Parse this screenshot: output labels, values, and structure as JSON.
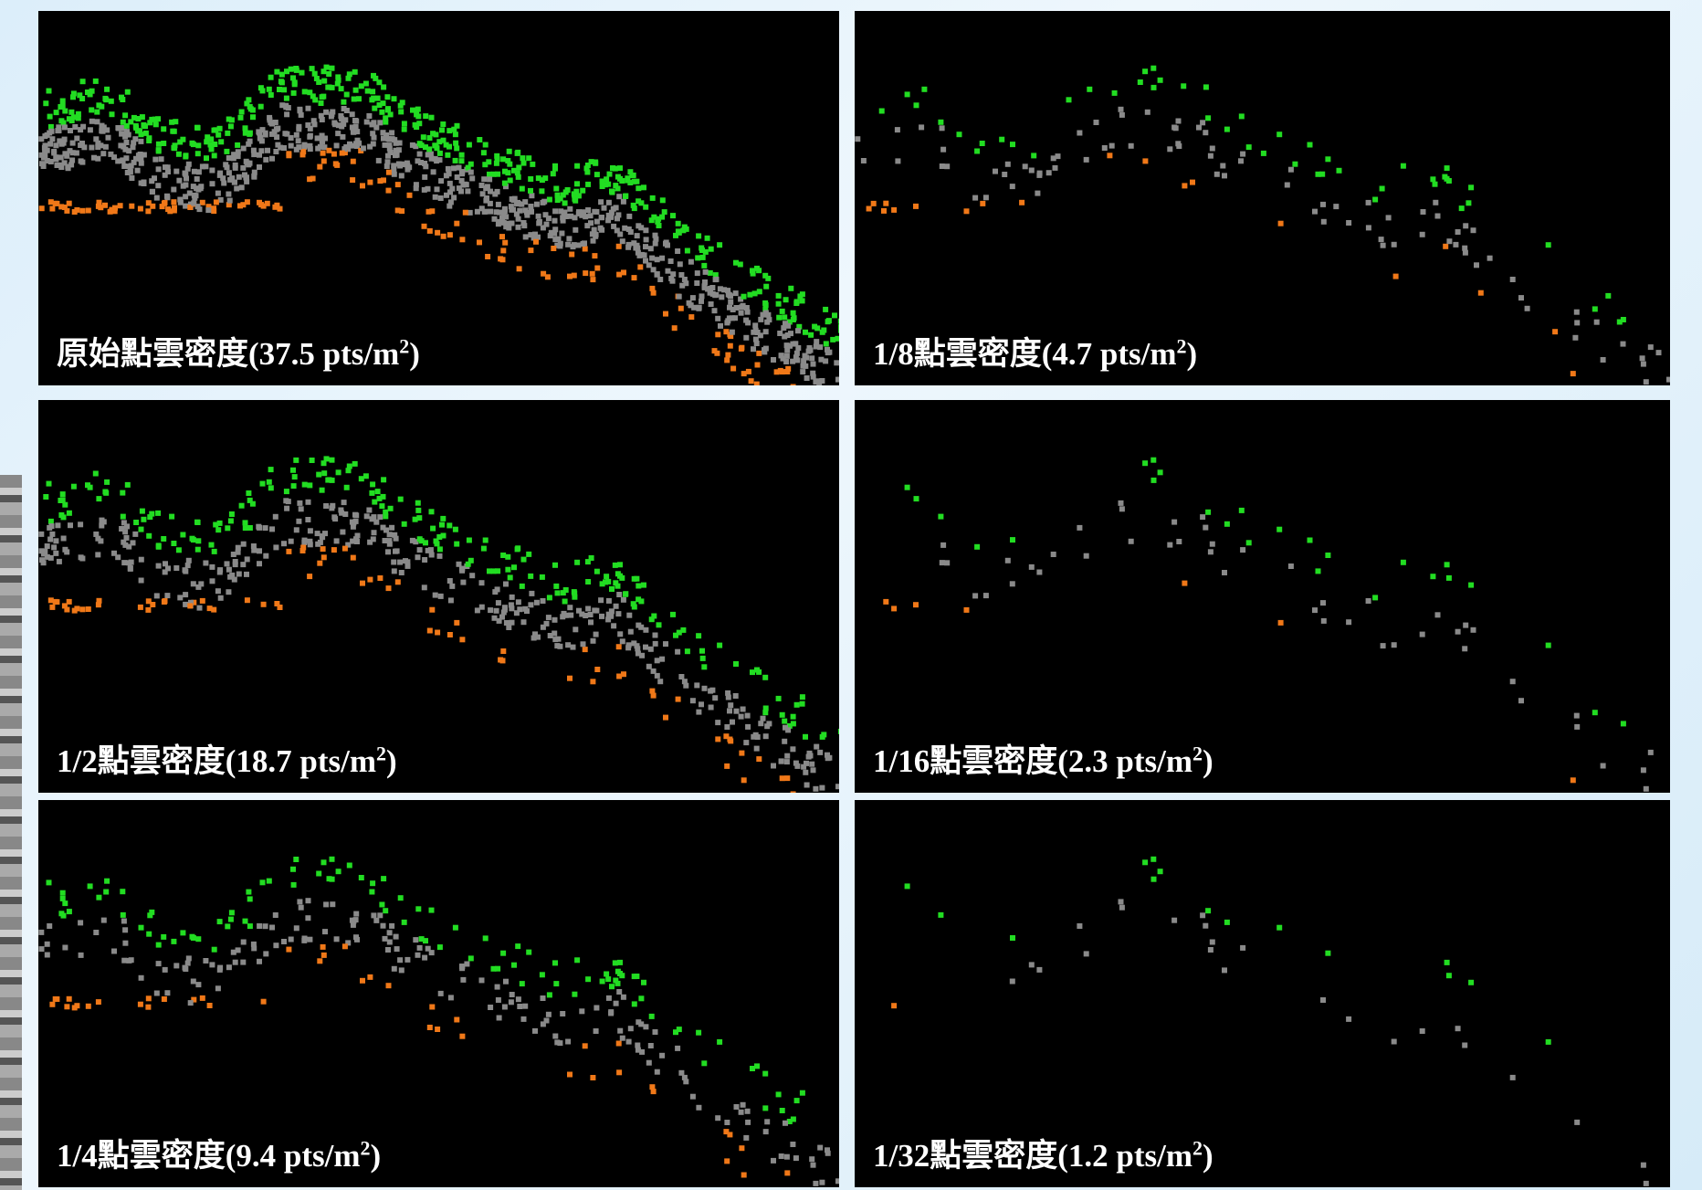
{
  "panels": [
    {
      "label": "原始點雲密度(37.5 pts/m",
      "sup": "2",
      "close": ")"
    },
    {
      "label": "1/8點雲密度(4.7 pts/m",
      "sup": "2",
      "close": ")"
    },
    {
      "label": "1/2點雲密度(18.7 pts/m",
      "sup": "2",
      "close": ")"
    },
    {
      "label": "1/16點雲密度(2.3 pts/m",
      "sup": "2",
      "close": ")"
    },
    {
      "label": "1/4點雲密度(9.4 pts/m",
      "sup": "2",
      "close": ")"
    },
    {
      "label": "1/32點雲密度(1.2 pts/m",
      "sup": "2",
      "close": ")"
    }
  ]
}
